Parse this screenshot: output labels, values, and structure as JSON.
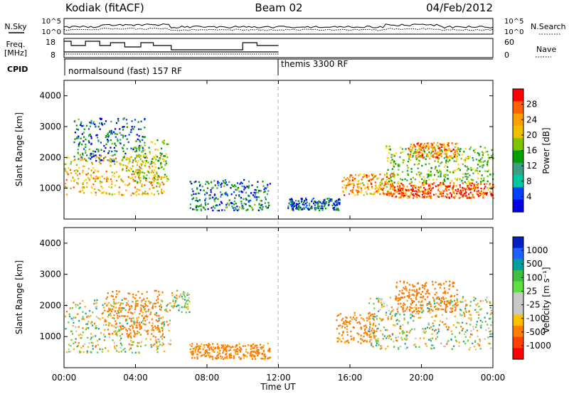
{
  "header": {
    "station": "Kodiak (fitACF)",
    "beam": "Beam 02",
    "date": "04/Feb/2012"
  },
  "noise_panel": {
    "left_label": "N.Sky",
    "right_label": "N.Search",
    "ticks_left": [
      "10^5",
      "10^0"
    ],
    "ticks_right": [
      "10^5",
      "10^0"
    ]
  },
  "freq_panel": {
    "left_label_1": "Freq.",
    "left_label_2": "[MHz]",
    "right_label": "Nave",
    "ticks_left": [
      "18",
      "8"
    ],
    "ticks_right": [
      "60",
      "0"
    ]
  },
  "cpid": {
    "label": "CPID",
    "mode_1": "normalsound (fast) 157 RF",
    "mode_2": "themis 3300 RF"
  },
  "x_axis": {
    "label": "Time UT",
    "ticks": [
      "00:00",
      "04:00",
      "08:00",
      "12:00",
      "16:00",
      "20:00",
      "00:00"
    ]
  },
  "power_colorbar": {
    "title": "Power [dB]",
    "ticks": [
      "28",
      "24",
      "20",
      "16",
      "12",
      "8",
      "4"
    ],
    "colors": [
      "#ff0000",
      "#ff6000",
      "#ffa000",
      "#f0c000",
      "#7fc400",
      "#00a000",
      "#3c9e82",
      "#00c8a0",
      "#0040ff",
      "#0000e0"
    ]
  },
  "velocity_colorbar": {
    "title": "Velocity [m s⁻¹]",
    "ticks": [
      "1000",
      "500",
      "100",
      "25",
      "-25",
      "-100",
      "-500",
      "-1000"
    ],
    "colors": [
      "#0020c0",
      "#2060ff",
      "#00a0a0",
      "#40c040",
      "#60e040",
      "#c8c8c8",
      "#c8c8c8",
      "#ffc000",
      "#ff8000",
      "#ff4000",
      "#ff0000"
    ]
  },
  "chart_data": [
    {
      "type": "heatmap",
      "title": "",
      "xlabel": "Time UT",
      "ylabel": "Slant Range [km]",
      "x_unit": "hours UT",
      "xlim": [
        0,
        24
      ],
      "ylim": [
        0,
        4500
      ],
      "yticks": [
        1000,
        2000,
        3000,
        4000
      ],
      "colorbar": "Power [dB]",
      "colorbar_range": [
        0,
        32
      ],
      "blobs": [
        {
          "t0": 0.0,
          "t1": 5.6,
          "r0": 800,
          "r1": 2100,
          "value": 20
        },
        {
          "t0": 0.5,
          "t1": 4.5,
          "r0": 1900,
          "r1": 3300,
          "value": 6
        },
        {
          "t0": 3.8,
          "t1": 5.8,
          "r0": 1200,
          "r1": 2600,
          "value": 14
        },
        {
          "t0": 7.0,
          "t1": 11.5,
          "r0": 300,
          "r1": 1300,
          "value": 6
        },
        {
          "t0": 12.5,
          "t1": 15.5,
          "r0": 300,
          "r1": 700,
          "value": 5
        },
        {
          "t0": 15.5,
          "t1": 18.5,
          "r0": 800,
          "r1": 1500,
          "value": 22
        },
        {
          "t0": 18.0,
          "t1": 24.0,
          "r0": 700,
          "r1": 1200,
          "value": 26
        },
        {
          "t0": 18.0,
          "t1": 24.0,
          "r0": 1200,
          "r1": 2400,
          "value": 12
        },
        {
          "t0": 19.2,
          "t1": 22.0,
          "r0": 2000,
          "r1": 2500,
          "value": 24
        }
      ]
    },
    {
      "type": "heatmap",
      "title": "",
      "xlabel": "Time UT",
      "ylabel": "Slant Range [km]",
      "x_unit": "hours UT",
      "xlim": [
        0,
        24
      ],
      "ylim": [
        0,
        4500
      ],
      "yticks": [
        1000,
        2000,
        3000,
        4000
      ],
      "colorbar": "Velocity [m s⁻¹]",
      "colorbar_range": [
        -1000,
        1000
      ],
      "blobs": [
        {
          "t0": 0.0,
          "t1": 6.0,
          "r0": 500,
          "r1": 2200,
          "value": 0
        },
        {
          "t0": 2.2,
          "t1": 5.5,
          "r0": 1000,
          "r1": 2500,
          "value": -300
        },
        {
          "t0": 6.0,
          "t1": 7.0,
          "r0": 1800,
          "r1": 2500,
          "value": 0
        },
        {
          "t0": 7.0,
          "t1": 11.5,
          "r0": 300,
          "r1": 800,
          "value": -200
        },
        {
          "t0": 15.2,
          "t1": 17.5,
          "r0": 800,
          "r1": 1800,
          "value": -200
        },
        {
          "t0": 17.0,
          "t1": 24.0,
          "r0": 600,
          "r1": 2300,
          "value": 0
        },
        {
          "t0": 18.5,
          "t1": 22.0,
          "r0": 1800,
          "r1": 2800,
          "value": -300
        }
      ]
    }
  ]
}
